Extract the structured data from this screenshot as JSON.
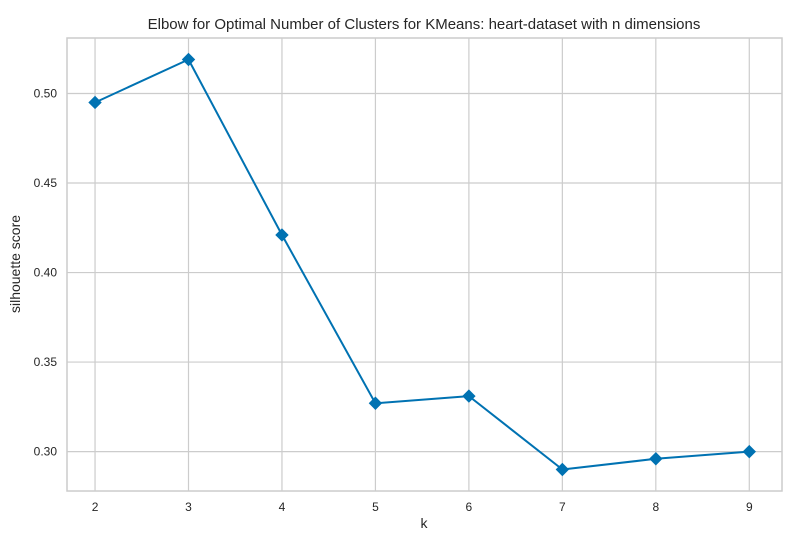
{
  "chart_data": {
    "type": "line",
    "title": "Elbow for Optimal Number of Clusters for KMeans: heart-dataset with n dimensions",
    "xlabel": "k",
    "ylabel": "silhouette score",
    "x": [
      2,
      3,
      4,
      5,
      6,
      7,
      8,
      9
    ],
    "series": [
      {
        "values": [
          0.495,
          0.519,
          0.421,
          0.327,
          0.331,
          0.29,
          0.296,
          0.3
        ]
      }
    ],
    "xlim": [
      1.7,
      9.35
    ],
    "ylim": [
      0.278,
      0.531
    ],
    "x_ticks": [
      "2",
      "3",
      "4",
      "5",
      "6",
      "7",
      "8",
      "9"
    ],
    "x_tick_values": [
      2,
      3,
      4,
      5,
      6,
      7,
      8,
      9
    ],
    "y_ticks": [
      "0.30",
      "0.35",
      "0.40",
      "0.45",
      "0.50"
    ],
    "y_tick_values": [
      0.3,
      0.35,
      0.4,
      0.45,
      0.5
    ],
    "grid": true,
    "marker": "diamond",
    "colors": {
      "line": "#0072b2",
      "grid": "#cccccc",
      "text": "#262626"
    }
  }
}
